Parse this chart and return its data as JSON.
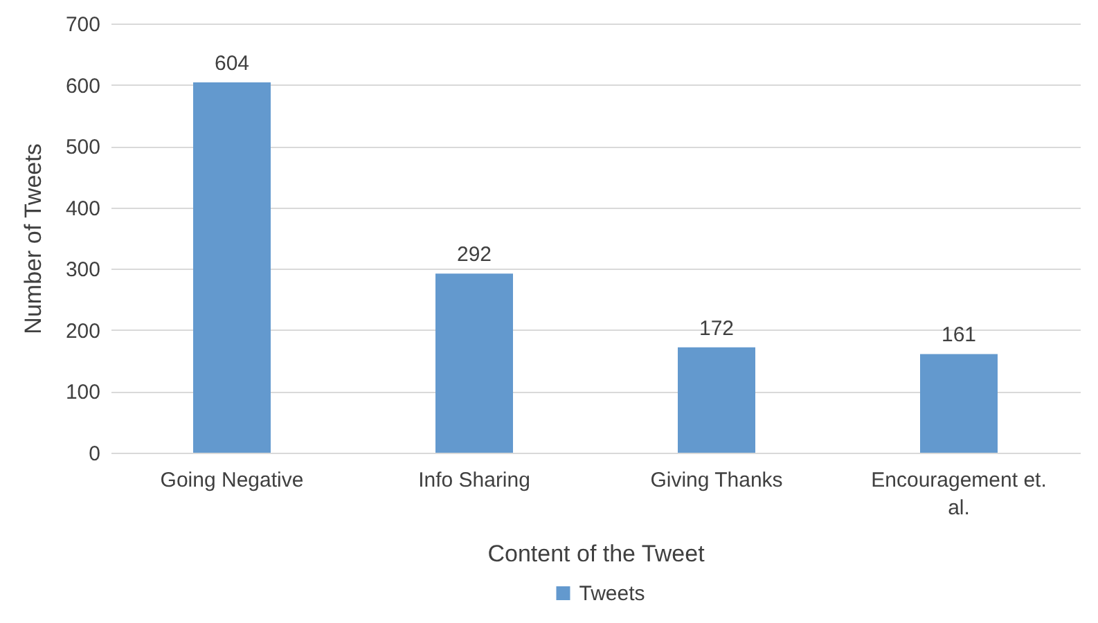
{
  "chart_data": {
    "type": "bar",
    "xlabel": "Content of the Tweet",
    "ylabel": "Number of Tweets",
    "categories": [
      "Going Negative",
      "Info Sharing",
      "Giving Thanks",
      "Encouragement et. al."
    ],
    "series": [
      {
        "name": "Tweets",
        "color": "#6399ce",
        "values": [
          604,
          292,
          172,
          161
        ]
      }
    ],
    "ylim": [
      0,
      700
    ],
    "yticks": [
      0,
      100,
      200,
      300,
      400,
      500,
      600,
      700
    ],
    "grid": "y",
    "legend": "bottom",
    "data_labels": true
  }
}
